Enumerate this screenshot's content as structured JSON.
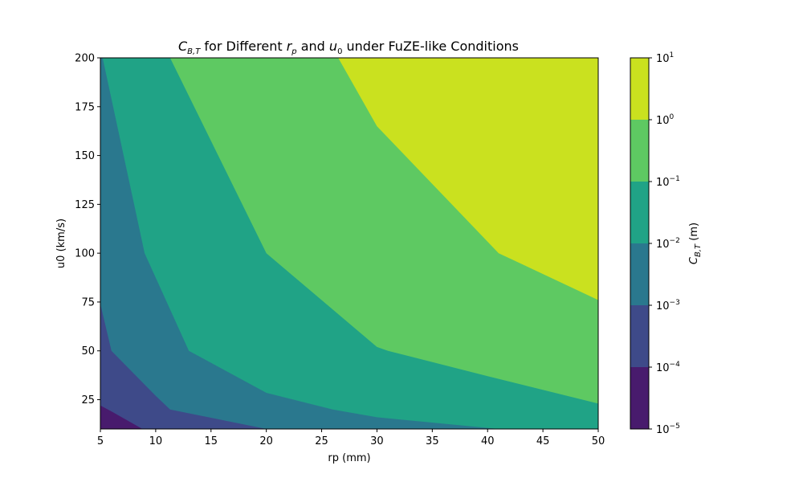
{
  "chart_data": {
    "type": "contourf",
    "title": {
      "prefix": "C",
      "prefix_sub": "B,T",
      "middle1": " for Different ",
      "var1": "r",
      "var1_sub": "p",
      "middle2": " and ",
      "var2": "u",
      "var2_sub": "0",
      "suffix": " under FuZE-like Conditions"
    },
    "xlabel": "rp (mm)",
    "ylabel": "u0 (km/s)",
    "xlim": [
      5,
      50
    ],
    "ylim": [
      10,
      200
    ],
    "x_ticks": [
      5,
      10,
      15,
      20,
      25,
      30,
      35,
      40,
      45,
      50
    ],
    "y_ticks": [
      25,
      50,
      75,
      100,
      125,
      150,
      175,
      200
    ],
    "colorbar": {
      "label_main": "C",
      "label_sub": "B,T",
      "label_unit": " (m)",
      "scale": "log",
      "levels": [
        -5,
        -4,
        -3,
        -2,
        -1,
        0,
        1
      ],
      "tick_base": "10",
      "colors": [
        "#481b6d",
        "#3e4a89",
        "#2a788e",
        "#20a386",
        "#5ec962",
        "#cae11f"
      ]
    },
    "contour_levels": [
      {
        "level": "1e-4",
        "points": [
          [
            5,
            22
          ],
          [
            6,
            19
          ],
          [
            8.8,
            10
          ]
        ]
      },
      {
        "level": "1e-3",
        "points": [
          [
            5,
            74
          ],
          [
            6,
            50
          ],
          [
            10,
            27
          ],
          [
            11.3,
            20
          ],
          [
            20,
            10
          ]
        ]
      },
      {
        "level": "1e-2",
        "points": [
          [
            5.2,
            200
          ],
          [
            9,
            100
          ],
          [
            13,
            50
          ],
          [
            20,
            28.5
          ],
          [
            26,
            20
          ],
          [
            30,
            16
          ],
          [
            41,
            10
          ]
        ]
      },
      {
        "level": "1e-1",
        "points": [
          [
            11.3,
            200
          ],
          [
            20,
            100
          ],
          [
            30,
            52
          ],
          [
            31,
            50
          ],
          [
            40,
            37
          ],
          [
            50,
            23
          ]
        ]
      },
      {
        "level": "1e0",
        "points": [
          [
            26.5,
            200
          ],
          [
            30,
            165
          ],
          [
            41,
            100
          ],
          [
            50,
            76
          ]
        ]
      }
    ]
  }
}
